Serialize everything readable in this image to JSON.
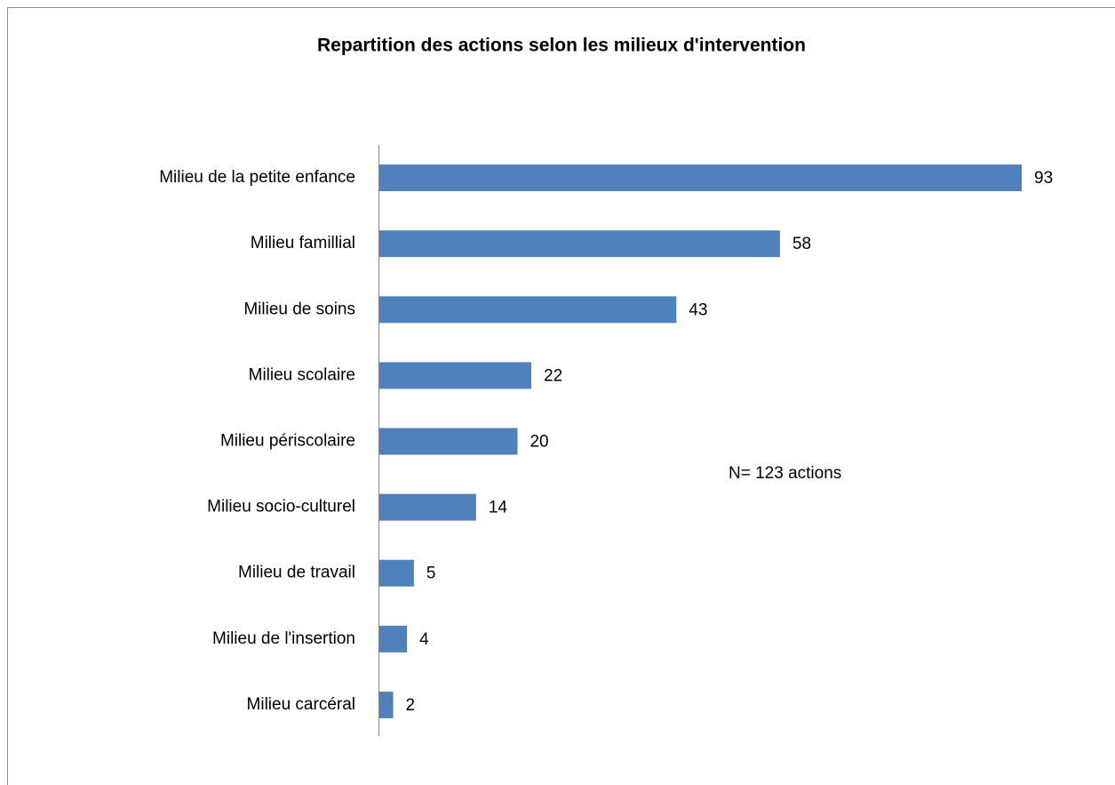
{
  "chart_data": {
    "type": "bar",
    "orientation": "horizontal",
    "title": "Repartition des actions selon les milieux d'intervention",
    "annotation": "N= 123 actions",
    "categories": [
      "Milieu de la petite enfance",
      "Milieu famillial",
      "Milieu de soins",
      "Milieu scolaire",
      "Milieu périscolaire",
      "Milieu socio-culturel",
      "Milieu de travail",
      "Milieu de l'insertion",
      "Milieu carcéral"
    ],
    "values": [
      93,
      58,
      43,
      22,
      20,
      14,
      5,
      4,
      2
    ],
    "color": "#4f81bd"
  }
}
